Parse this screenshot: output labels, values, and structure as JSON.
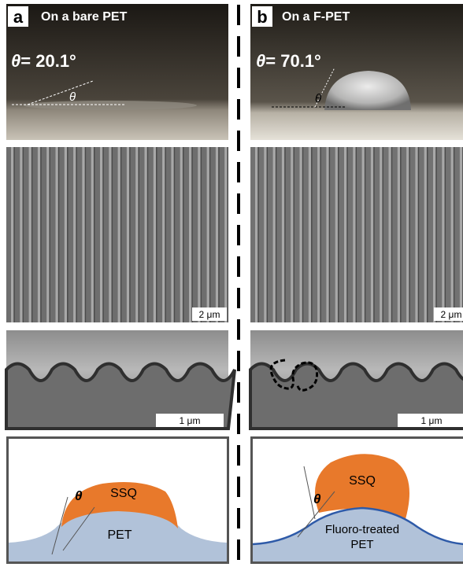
{
  "panels": [
    {
      "label": "a",
      "title": "On a bare PET",
      "angle_symbol": "θ",
      "angle_value": "= 20.1°",
      "angle_mark": "θ",
      "sem_scale": "2 μm",
      "cross_section_scale": "1 μm",
      "schematic": {
        "coating": "SSQ",
        "angle_mark": "θ",
        "substrate": [
          "PET"
        ]
      }
    },
    {
      "label": "b",
      "title": "On a F-PET",
      "angle_symbol": "θ",
      "angle_value": "= 70.1°",
      "angle_mark": "θ",
      "sem_scale": "2 μm",
      "cross_section_scale": "1 μm",
      "schematic": {
        "coating": "SSQ",
        "angle_mark": "θ",
        "substrate": [
          "Fluoro-treated",
          "PET"
        ]
      }
    }
  ]
}
